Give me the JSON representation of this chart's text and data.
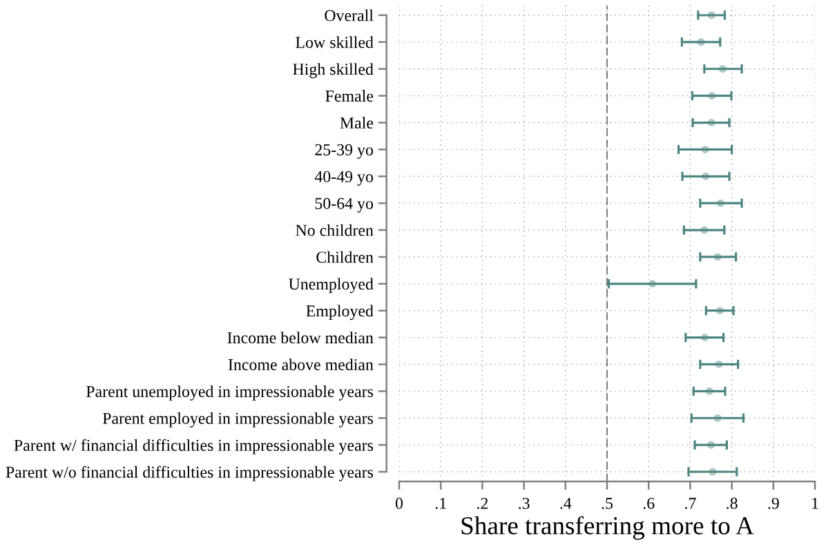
{
  "chart_data": {
    "type": "scatter",
    "orientation": "horizontal",
    "xlabel": "Share transferring more to A",
    "categories": [
      "Overall",
      "Low skilled",
      "High skilled",
      "Female",
      "Male",
      "25-39 yo",
      "40-49 yo",
      "50-64 yo",
      "No children",
      "Children",
      "Unemployed",
      "Employed",
      "Income below median",
      "Income above median",
      "Parent unemployed in impressionable years",
      "Parent employed in impressionable years",
      "Parent w/ financial difficulties in impressionable years",
      "Parent w/o financial difficulties in impressionable years"
    ],
    "series": [
      {
        "color": "#4d8580",
        "values": [
          0.751,
          0.726,
          0.778,
          0.752,
          0.751,
          0.736,
          0.737,
          0.773,
          0.734,
          0.766,
          0.609,
          0.771,
          0.735,
          0.769,
          0.746,
          0.766,
          0.75,
          0.754
        ],
        "errors": [
          [
            0.719,
            0.783
          ],
          [
            0.68,
            0.772
          ],
          [
            0.734,
            0.824
          ],
          [
            0.705,
            0.799
          ],
          [
            0.706,
            0.794
          ],
          [
            0.672,
            0.8
          ],
          [
            0.681,
            0.794
          ],
          [
            0.724,
            0.824
          ],
          [
            0.685,
            0.782
          ],
          [
            0.724,
            0.81
          ],
          [
            0.504,
            0.714
          ],
          [
            0.738,
            0.804
          ],
          [
            0.689,
            0.78
          ],
          [
            0.724,
            0.815
          ],
          [
            0.708,
            0.784
          ],
          [
            0.703,
            0.828
          ],
          [
            0.711,
            0.788
          ],
          [
            0.696,
            0.812
          ]
        ]
      }
    ],
    "xlim": [
      0,
      1
    ],
    "xticks": [
      0,
      {
        "value": 0.1,
        "label": ".1"
      },
      {
        "value": 0.2,
        "label": ".2"
      },
      {
        "value": 0.3,
        "label": ".3"
      },
      {
        "value": 0.4,
        "label": ".4"
      },
      {
        "value": 0.5,
        "label": ".5"
      },
      {
        "value": 0.6,
        "label": ".6"
      },
      {
        "value": 0.7,
        "label": ".7"
      },
      {
        "value": 0.8,
        "label": ".8"
      },
      {
        "value": 0.9,
        "label": ".9"
      },
      1
    ],
    "grid": true,
    "marker": "circle",
    "ref_lines": [
      {
        "axis": "x",
        "value": 0.5,
        "color": "#7f7f7f",
        "line_style": "dashed"
      }
    ]
  }
}
